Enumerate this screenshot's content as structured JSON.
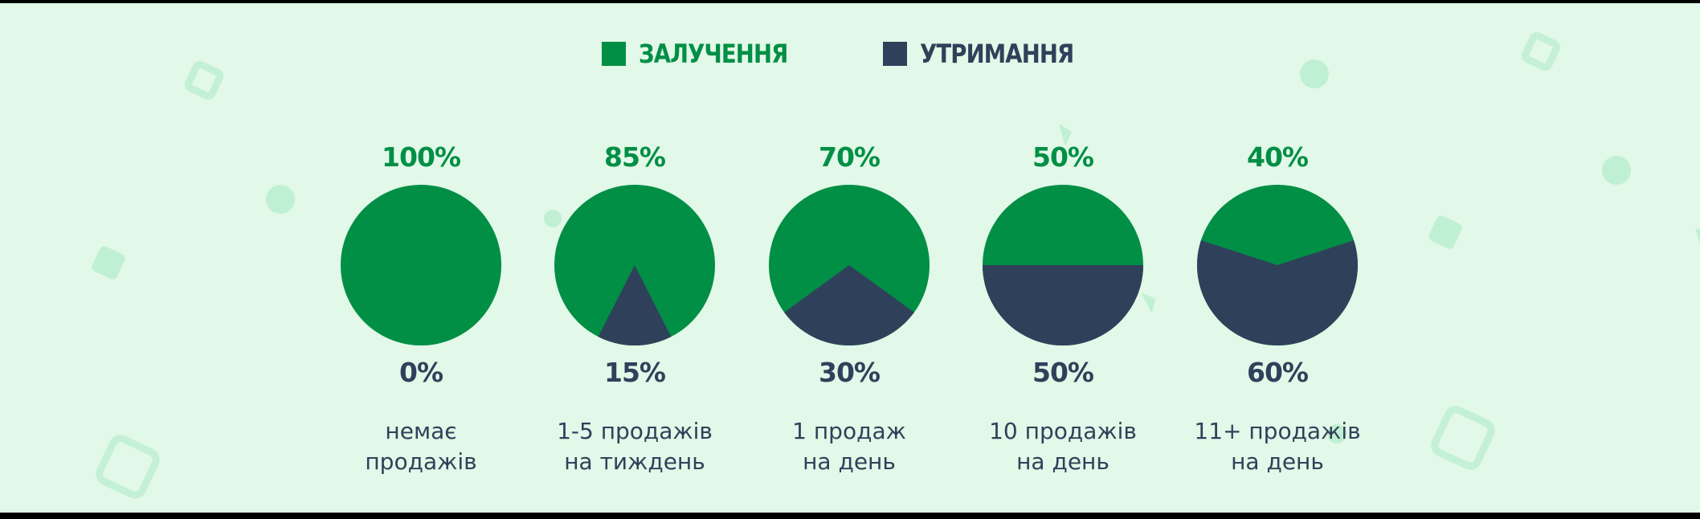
{
  "colors": {
    "acquisition": "#008f45",
    "retention": "#2f415a",
    "background": "#e2f8e8",
    "decoration": "#c0f0d3"
  },
  "legend": {
    "acquisition_label": "ЗАЛУЧЕННЯ",
    "retention_label": "УТРИМАННЯ"
  },
  "chart_data": {
    "type": "pie",
    "series_names": [
      "ЗАЛУЧЕННЯ",
      "УТРИМАННЯ"
    ],
    "legend_position": "top-center",
    "charts": [
      {
        "category": [
          "немає",
          "продажів"
        ],
        "acquisition": 100,
        "retention": 0,
        "acquisition_label": "100%",
        "retention_label": "0%"
      },
      {
        "category": [
          "1-5 продажів",
          "на тиждень"
        ],
        "acquisition": 85,
        "retention": 15,
        "acquisition_label": "85%",
        "retention_label": "15%"
      },
      {
        "category": [
          "1 продаж",
          "на день"
        ],
        "acquisition": 70,
        "retention": 30,
        "acquisition_label": "70%",
        "retention_label": "30%"
      },
      {
        "category": [
          "10 продажів",
          "на день"
        ],
        "acquisition": 50,
        "retention": 50,
        "acquisition_label": "50%",
        "retention_label": "50%"
      },
      {
        "category": [
          "11+ продажів",
          "на день"
        ],
        "acquisition": 40,
        "retention": 60,
        "acquisition_label": "40%",
        "retention_label": "60%"
      }
    ]
  }
}
